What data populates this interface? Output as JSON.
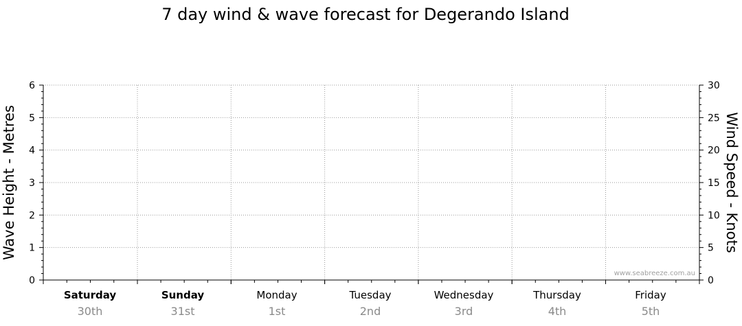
{
  "chart_data": {
    "type": "line",
    "title": "7 day wind & wave forecast for Degerando Island",
    "y_left": {
      "label": "Wave Height - Metres",
      "range": [
        0,
        6
      ],
      "ticks": [
        "0",
        "1",
        "2",
        "3",
        "4",
        "5",
        "6"
      ]
    },
    "y_right": {
      "label": "Wind Speed - Knots",
      "range": [
        0,
        30
      ],
      "ticks": [
        "0",
        "5",
        "10",
        "15",
        "20",
        "25",
        "30"
      ]
    },
    "x": {
      "days": [
        {
          "name": "Saturday",
          "date": "30th",
          "bold": true
        },
        {
          "name": "Sunday",
          "date": "31st",
          "bold": true
        },
        {
          "name": "Monday",
          "date": "1st",
          "bold": false
        },
        {
          "name": "Tuesday",
          "date": "2nd",
          "bold": false
        },
        {
          "name": "Wednesday",
          "date": "3rd",
          "bold": false
        },
        {
          "name": "Thursday",
          "date": "4th",
          "bold": false
        },
        {
          "name": "Friday",
          "date": "5th",
          "bold": false
        }
      ]
    },
    "series": [],
    "grid": true,
    "watermark": "www.seabreeze.com.au"
  }
}
